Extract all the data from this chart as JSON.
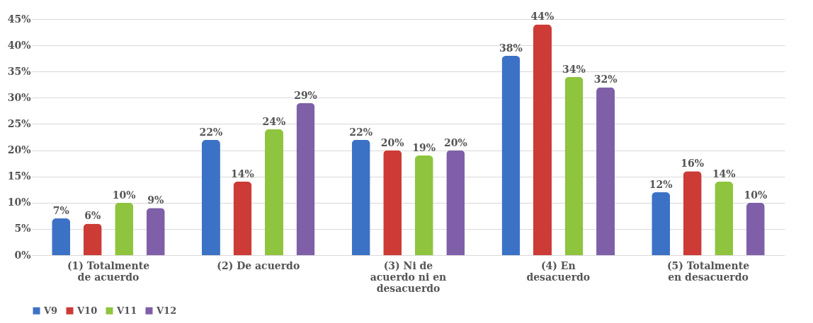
{
  "chart_data": {
    "type": "bar",
    "categories": [
      "(1) Totalmente\nde acuerdo",
      "(2) De acuerdo",
      "(3) Ni de\nacuerdo ni en\ndesacuerdo",
      "(4) En\ndesacuerdo",
      "(5) Totalmente\nen desacuerdo"
    ],
    "series": [
      {
        "name": "V9",
        "color": "#3c72c6",
        "values": [
          7,
          22,
          22,
          38,
          12
        ],
        "value_labels": [
          "7%",
          "22%",
          "22%",
          "38%",
          "12%"
        ]
      },
      {
        "name": "V10",
        "color": "#cc3b35",
        "values": [
          6,
          14,
          20,
          44,
          16
        ],
        "value_labels": [
          "6%",
          "14%",
          "20%",
          "44%",
          "16%"
        ]
      },
      {
        "name": "V11",
        "color": "#8fc43f",
        "values": [
          10,
          24,
          19,
          34,
          14
        ],
        "value_labels": [
          "10%",
          "24%",
          "19%",
          "34%",
          "14%"
        ]
      },
      {
        "name": "V12",
        "color": "#7f5fa8",
        "values": [
          9,
          29,
          20,
          32,
          10
        ],
        "value_labels": [
          "9%",
          "29%",
          "20%",
          "32%",
          "10%"
        ]
      }
    ],
    "ylim": [
      0,
      45
    ],
    "yticks": [
      {
        "value": 0,
        "label": "0%"
      },
      {
        "value": 5,
        "label": "5%"
      },
      {
        "value": 10,
        "label": "10%"
      },
      {
        "value": 15,
        "label": "15%"
      },
      {
        "value": 20,
        "label": "20%"
      },
      {
        "value": 25,
        "label": "25%"
      },
      {
        "value": 30,
        "label": "30%"
      },
      {
        "value": 35,
        "label": "35%"
      },
      {
        "value": 40,
        "label": "40%"
      },
      {
        "value": 45,
        "label": "45%"
      }
    ],
    "grid": "y",
    "legend": "bottom"
  }
}
